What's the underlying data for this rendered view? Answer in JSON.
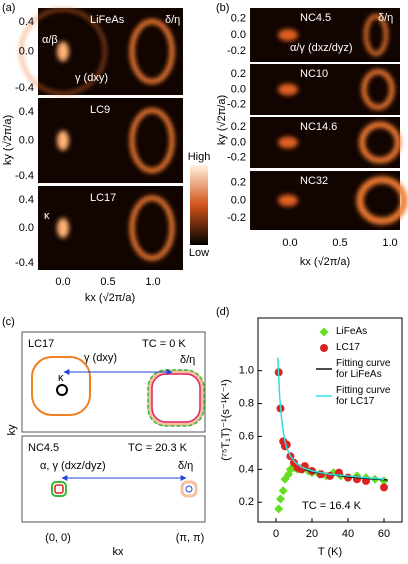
{
  "panels": {
    "a": {
      "label": "(a)",
      "maps": [
        "LiFeAs",
        "LC9",
        "LC17"
      ],
      "delta_eta": "δ/η",
      "alpha_beta": "α/β",
      "gamma": "γ (dxy)",
      "kappa": "κ",
      "yticks": [
        "0.4",
        "0.0",
        "-0.4"
      ],
      "xticks": [
        "0.0",
        "0.5",
        "1.0"
      ],
      "ylabel": "ky (√2π/a)",
      "xlabel": "kx (√2π/a)",
      "high": "High",
      "low": "Low"
    },
    "b": {
      "label": "(b)",
      "maps": [
        "NC4.5",
        "NC10",
        "NC14.6",
        "NC32"
      ],
      "delta_eta": "δ/η",
      "alpha_gamma": "α/γ (dxz/dyz)",
      "yticks": [
        "0.2",
        "0.0",
        "-0.2"
      ],
      "xticks": [
        "0.0",
        "0.5",
        "1.0"
      ],
      "ylabel": "ky (√2π/a)",
      "xlabel": "kx (√2π/a)"
    },
    "c": {
      "label": "(c)",
      "top": {
        "name": "LC17",
        "tc": "TC = 0 K",
        "gamma": "γ (dxy)",
        "delta_eta": "δ/η",
        "kappa": "κ"
      },
      "bottom": {
        "name": "NC4.5",
        "tc": "TC = 20.3 K",
        "alpha_gamma": "α, γ (dxz/dyz)",
        "delta_eta": "δ/η"
      },
      "ylabel": "ky",
      "xlabel": "kx",
      "origin": "(0, 0)",
      "corner": "(π, π)"
    }
  },
  "chart_data": {
    "type": "scatter",
    "label": "(d)",
    "xlabel": "T (K)",
    "ylabel": "(⁷⁵T₁T)⁻¹(s⁻¹K⁻¹)",
    "annotation": "TC = 16.4 K",
    "xlim": [
      -10,
      70
    ],
    "xticks": [
      0,
      20,
      40,
      60
    ],
    "ylim": [
      0.08,
      1.32
    ],
    "yticks": [
      0.2,
      0.4,
      0.6,
      0.8,
      {
        "value": 1,
        "label": "1.0"
      }
    ],
    "series": [
      {
        "name": "LiFeAs",
        "color": "#66dd22",
        "marker": "diamond",
        "x": [
          1.5,
          2.5,
          4,
          5,
          7,
          8,
          10,
          12,
          15,
          18,
          20,
          24,
          28,
          32,
          36,
          40,
          45,
          50,
          55,
          60
        ],
        "values": [
          0.16,
          0.22,
          0.27,
          0.34,
          0.37,
          0.4,
          0.41,
          0.4,
          0.4,
          0.39,
          0.38,
          0.37,
          0.36,
          0.38,
          0.36,
          0.35,
          0.36,
          0.35,
          0.34,
          0.33
        ]
      },
      {
        "name": "LC17",
        "color": "#dd2222",
        "marker": "circle",
        "x": [
          1.5,
          2.5,
          4,
          5,
          6,
          8,
          10,
          12,
          14,
          16,
          20,
          25,
          30,
          35,
          40,
          45,
          50,
          60
        ],
        "values": [
          0.99,
          0.77,
          0.57,
          0.54,
          0.55,
          0.48,
          0.44,
          0.41,
          0.4,
          0.42,
          0.39,
          0.37,
          0.36,
          0.38,
          0.35,
          0.34,
          0.33,
          0.29
        ]
      },
      {
        "name": "Fitting curve for LiFeAs",
        "color": "#111111",
        "marker": "line",
        "x": [
          16,
          20,
          30,
          40,
          50,
          62
        ],
        "values": [
          0.4,
          0.385,
          0.37,
          0.355,
          0.345,
          0.335
        ]
      },
      {
        "name": "Fitting curve for LC17",
        "color": "#33dddd",
        "marker": "line",
        "x": [
          1,
          2,
          3,
          4,
          5,
          6,
          8,
          10,
          12,
          15,
          20,
          25,
          30,
          40,
          50,
          60
        ],
        "values": [
          1.08,
          0.85,
          0.72,
          0.63,
          0.57,
          0.53,
          0.48,
          0.45,
          0.43,
          0.41,
          0.39,
          0.38,
          0.37,
          0.36,
          0.35,
          0.34
        ]
      }
    ]
  }
}
